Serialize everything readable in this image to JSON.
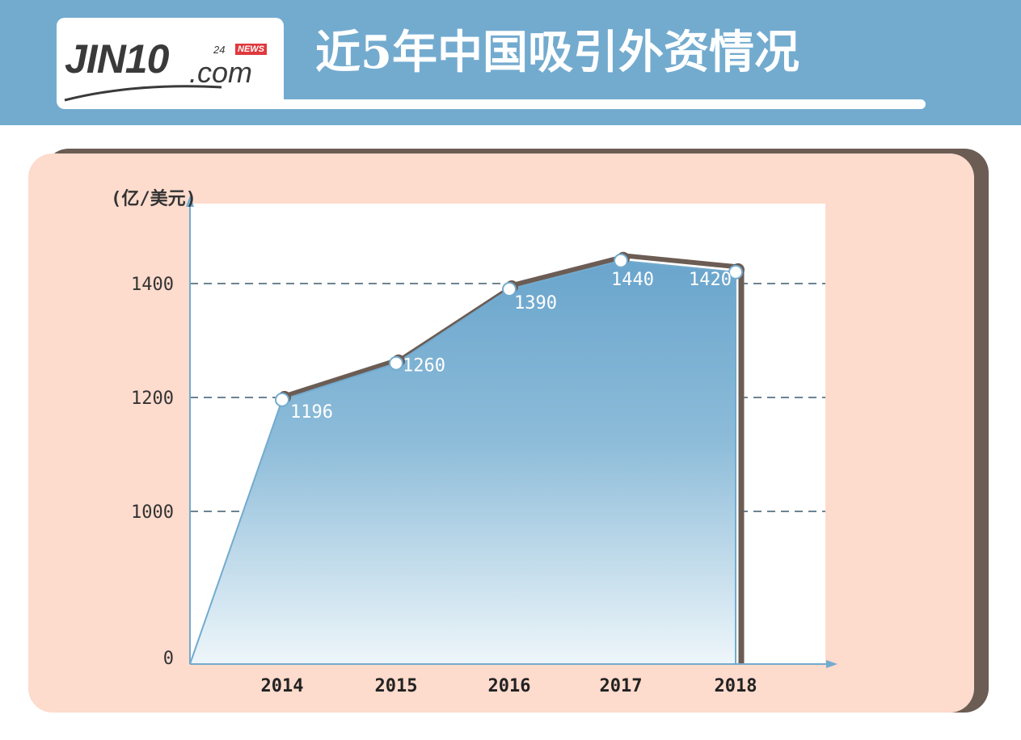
{
  "header": {
    "title": "近5年中国吸引外资情况",
    "logo": {
      "main": "JIN10",
      "suffix": ".com",
      "tag_number": "24",
      "tag_news": "NEWS"
    }
  },
  "chart_data": {
    "type": "area",
    "ylabel": "(亿/美元)",
    "xlabel": "",
    "categories": [
      "2014",
      "2015",
      "2016",
      "2017",
      "2018"
    ],
    "values": [
      1196,
      1260,
      1390,
      1440,
      1420
    ],
    "data_labels": [
      "1196",
      "1260",
      "1390",
      "1440",
      "1420"
    ],
    "y_ticks": [
      "0",
      "1000",
      "1200",
      "1400"
    ],
    "grid": "dashed at 1000, 1200, 1400",
    "legend": "none",
    "colors": {
      "area_top": "#73abcf",
      "area_bottom": "#eef6fa",
      "grid": "#3d5a6e",
      "axis": "#73abcf",
      "shadow_line": "#6b5c54"
    }
  }
}
